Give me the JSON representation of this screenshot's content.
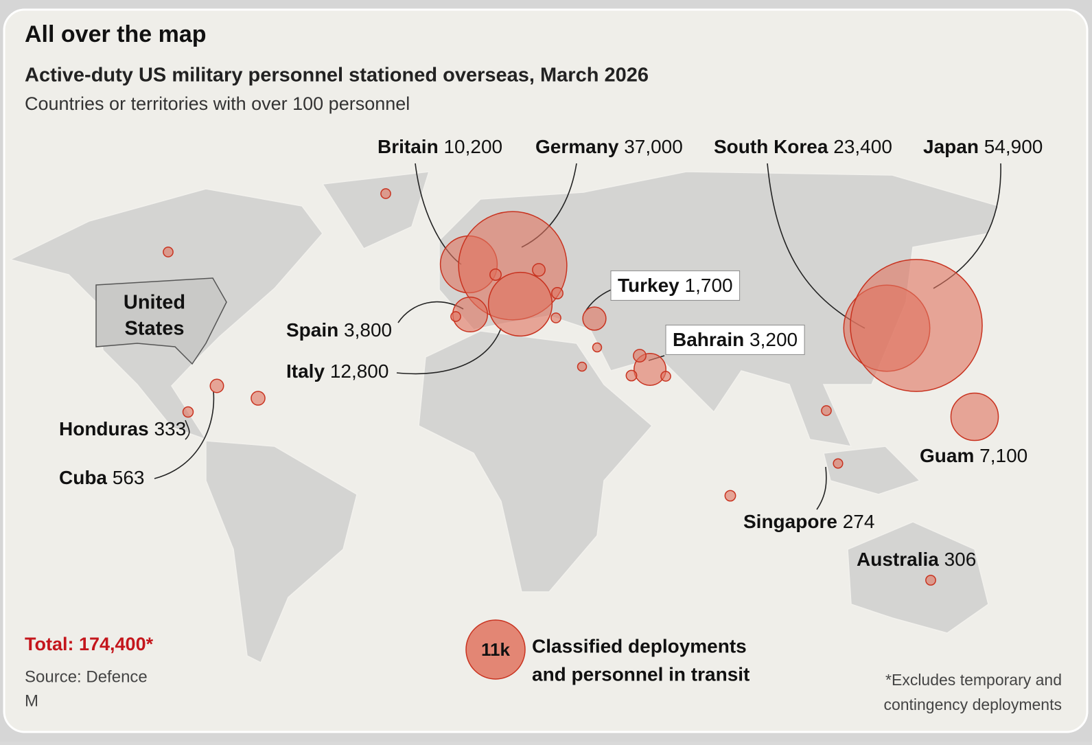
{
  "header": {
    "title": "All over the map",
    "subtitle": "Active-duty US military personnel stationed overseas, March 2026",
    "note": "Countries or territories with over 100 personnel"
  },
  "map": {
    "highlight_label": [
      "United",
      "States"
    ],
    "locations": [
      {
        "name": "Britain",
        "value": 10200,
        "label": "10,200"
      },
      {
        "name": "Germany",
        "value": 37000,
        "label": "37,000"
      },
      {
        "name": "South Korea",
        "value": 23400,
        "label": "23,400"
      },
      {
        "name": "Japan",
        "value": 54900,
        "label": "54,900"
      },
      {
        "name": "Turkey",
        "value": 1700,
        "label": "1,700"
      },
      {
        "name": "Spain",
        "value": 3800,
        "label": "3,800"
      },
      {
        "name": "Bahrain",
        "value": 3200,
        "label": "3,200"
      },
      {
        "name": "Italy",
        "value": 12800,
        "label": "12,800"
      },
      {
        "name": "Honduras",
        "value": 333
      },
      {
        "name": "Cuba",
        "value": 563
      },
      {
        "name": "Guam",
        "value": 7100,
        "label": "7,100"
      },
      {
        "name": "Singapore",
        "value": 274
      },
      {
        "name": "Australia",
        "value": 306
      }
    ],
    "unlabeled_values": [
      300,
      300,
      400,
      500,
      300,
      400,
      600,
      250,
      250,
      500,
      350,
      300,
      300,
      350,
      300
    ],
    "classified": {
      "value": 11000,
      "label": "11k",
      "text": [
        "Classified deployments",
        "and personnel in transit"
      ]
    },
    "color": "#e0735f"
  },
  "footer": {
    "total": "Total: 174,400*",
    "source": [
      "Source: Defence",
      "M"
    ],
    "footnote": [
      "*Excludes temporary and",
      "contingency deployments"
    ]
  }
}
